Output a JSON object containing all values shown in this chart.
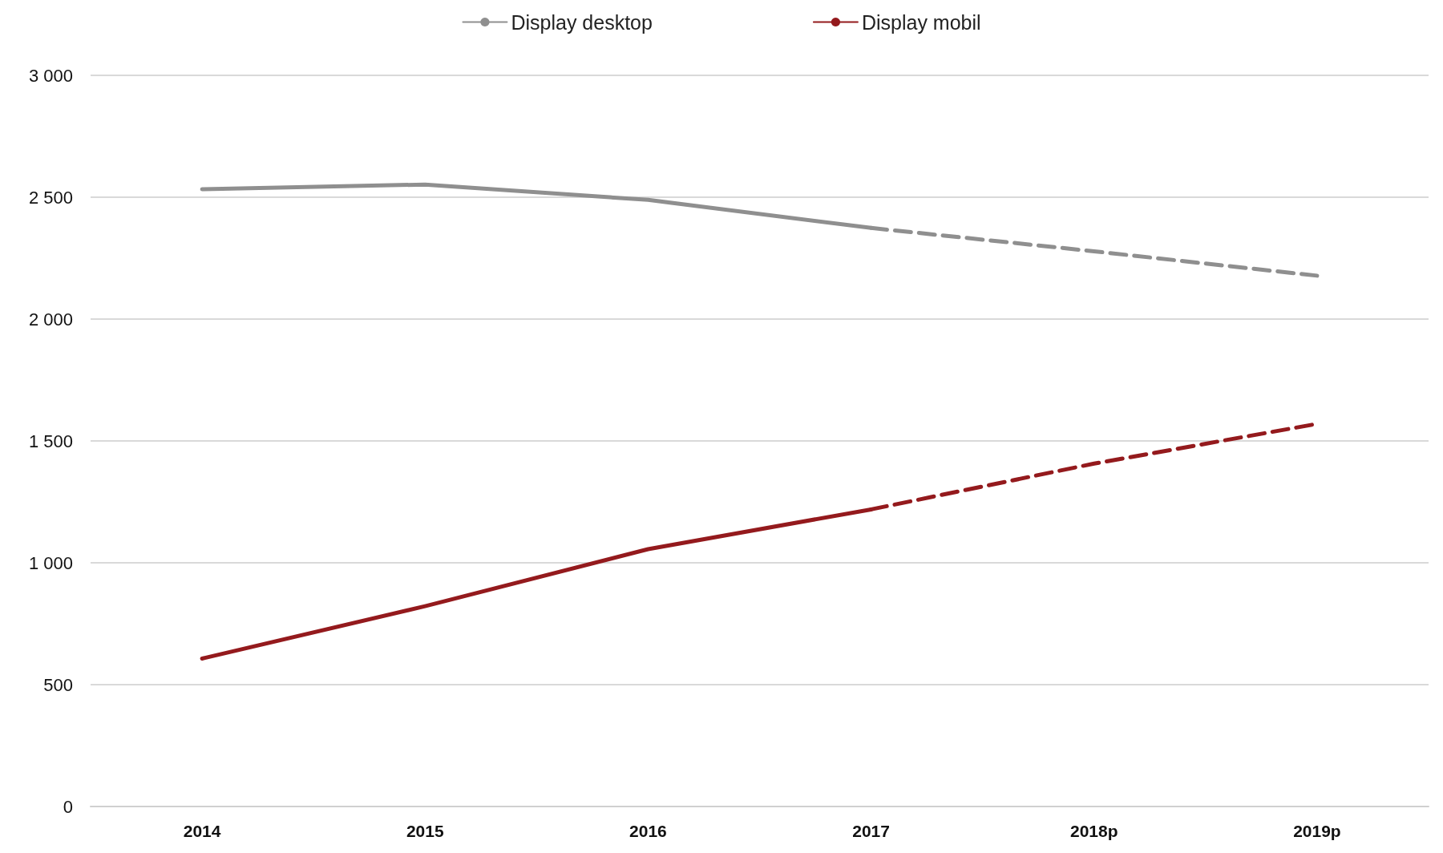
{
  "chart_data": {
    "type": "line",
    "categories": [
      "2014",
      "2015",
      "2016",
      "2017",
      "2018p",
      "2019p"
    ],
    "series": [
      {
        "name": "Display desktop",
        "color": "#8f8f8f",
        "line_style": "solid",
        "values": [
          2533,
          2552,
          2489,
          2374,
          null,
          null
        ]
      },
      {
        "color": "#8f8f8f",
        "line_style": "dashed",
        "values": [
          null,
          null,
          null,
          2374,
          2278,
          2178
        ]
      },
      {
        "name": "Display mobil",
        "color": "#941a1d",
        "line_style": "solid",
        "values": [
          607,
          822,
          1056,
          1219,
          null,
          null
        ]
      },
      {
        "color": "#941a1d",
        "line_style": "dashed",
        "values": [
          null,
          null,
          null,
          1219,
          1407,
          1570
        ]
      }
    ],
    "ylim": [
      0,
      3000
    ],
    "yticks": [
      0,
      500,
      {
        "value": 1000,
        "label": "1 000"
      },
      {
        "value": 1500,
        "label": "1 500"
      },
      {
        "value": 2000,
        "label": "2 000"
      },
      {
        "value": 2500,
        "label": "2 500"
      },
      {
        "value": 3000,
        "label": "3 000"
      }
    ],
    "grid": "y",
    "legend": "top",
    "marker": "none"
  }
}
